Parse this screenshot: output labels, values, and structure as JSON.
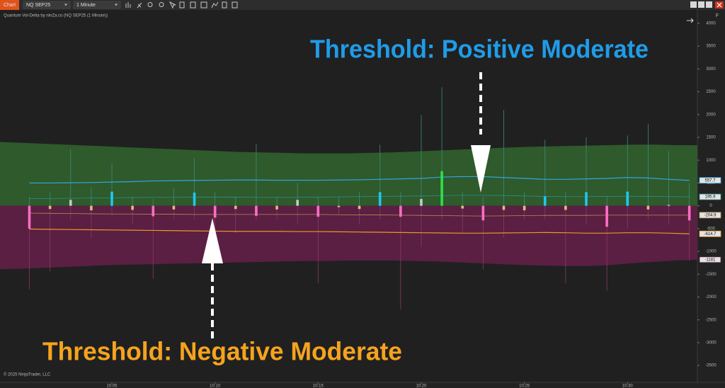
{
  "toolbar": {
    "tab": "Chart",
    "instrument": "NQ SEP25",
    "interval": "1 Minute"
  },
  "chart_data": {
    "type": "bar",
    "title": "Quantum Vol-Delta by ninZa.co (NQ SEP25 (1 Minute))",
    "copyright": "© 2025 NinjaTrader, LLC",
    "panel_letter": "F",
    "annotations": [
      {
        "text": "Threshold: Positive Moderate",
        "color": "#1f9ce8"
      },
      {
        "text": "Threshold: Negative Moderate",
        "color": "#f5a31e"
      }
    ],
    "categories": [
      null,
      null,
      null,
      null,
      "10:05",
      null,
      null,
      null,
      null,
      "10:10",
      null,
      null,
      null,
      null,
      "10:15",
      null,
      null,
      null,
      null,
      "10:20",
      null,
      null,
      null,
      null,
      "10:25",
      null,
      null,
      null,
      null,
      "10:30",
      null,
      null,
      null
    ],
    "ylim": [
      -3870,
      4170
    ],
    "yticks": [
      -3500,
      -3000,
      -2500,
      -2000,
      -1500,
      -1000,
      -500,
      0,
      500,
      1000,
      1500,
      2000,
      2500,
      3000,
      3500,
      4000
    ],
    "delta": {
      "values": [
        -500,
        -70,
        130,
        -100,
        310,
        -90,
        -230,
        -80,
        290,
        -260,
        -70,
        -220,
        -80,
        130,
        -240,
        -30,
        -70,
        300,
        -240,
        150,
        760,
        -60,
        -320,
        -90,
        -100,
        210,
        -90,
        300,
        -460,
        310,
        -80,
        20,
        -320
      ]
    },
    "wick_high": {
      "color": "#3d8c7a",
      "values": [
        200,
        300,
        1240,
        400,
        930,
        200,
        150,
        400,
        1040,
        300,
        200,
        1350,
        200,
        500,
        200,
        200,
        300,
        1340,
        300,
        1990,
        2600,
        300,
        200,
        2100,
        300,
        1450,
        300,
        1500,
        200,
        1540,
        1800,
        1200,
        500
      ]
    },
    "wick_low": {
      "color": "#8c3a66",
      "values": [
        -1830,
        -1440,
        -300,
        -700,
        -200,
        -400,
        -1600,
        -300,
        -300,
        -1100,
        -600,
        -300,
        -300,
        -400,
        -1700,
        -200,
        -400,
        -300,
        -2270,
        -900,
        -300,
        -600,
        -1400,
        -700,
        -300,
        -300,
        -1700,
        -400,
        -1860,
        -500,
        -300,
        -400,
        -1200
      ]
    },
    "bar_colors": {
      "strong_positive": "#2ee04a",
      "moderate_positive": "#1ec8f0",
      "weak_positive": "#c8c8c8",
      "strong_negative": "#ff3fa8",
      "moderate_negative": "#ff6ec4",
      "weak_negative": "#cfc47a"
    },
    "lines": [
      {
        "color": "#2fa8e0",
        "width": 1.2,
        "values": [
          500,
          500,
          505,
          510,
          520,
          530,
          545,
          550,
          555,
          560,
          565,
          565,
          560,
          560,
          560,
          565,
          570,
          580,
          590,
          600,
          630,
          640,
          640,
          620,
          600,
          580,
          580,
          590,
          600,
          620,
          610,
          580,
          557.7
        ]
      },
      {
        "color": "#2a8f8a",
        "width": 0.8,
        "values": [
          160,
          160,
          165,
          170,
          175,
          180,
          185,
          185,
          190,
          190,
          190,
          185,
          185,
          185,
          190,
          195,
          200,
          205,
          210,
          215,
          220,
          230,
          230,
          225,
          215,
          205,
          200,
          200,
          205,
          210,
          205,
          200,
          195.9
        ]
      },
      {
        "color": "#c08850",
        "width": 0.8,
        "values": [
          -160,
          -165,
          -170,
          -175,
          -180,
          -180,
          -185,
          -185,
          -190,
          -190,
          -190,
          -190,
          -190,
          -190,
          -190,
          -195,
          -200,
          -200,
          -205,
          -210,
          -215,
          -220,
          -225,
          -220,
          -215,
          -210,
          -210,
          -210,
          -205,
          -205,
          -205,
          -205,
          -204.9
        ]
      },
      {
        "color": "#f0962a",
        "width": 1.2,
        "values": [
          -510,
          -515,
          -520,
          -525,
          -530,
          -535,
          -540,
          -545,
          -550,
          -555,
          -560,
          -560,
          -560,
          -565,
          -565,
          -570,
          -575,
          -580,
          -585,
          -590,
          -595,
          -600,
          -600,
          -595,
          -590,
          -585,
          -590,
          -600,
          -600,
          -590,
          -590,
          -600,
          -614.7
        ]
      }
    ],
    "bands": {
      "upper": {
        "color": "#2f5a2c",
        "values": [
          1400,
          1380,
          1360,
          1340,
          1320,
          1300,
          1280,
          1260,
          1240,
          1220,
          1200,
          1180,
          1170,
          1160,
          1150,
          1150,
          1150,
          1160,
          1170,
          1190,
          1210,
          1230,
          1250,
          1270,
          1290,
          1300,
          1310,
          1320,
          1330,
          1340,
          1340,
          1330,
          1330
        ]
      },
      "lower": {
        "color": "#5a1f42",
        "values": [
          -1390,
          -1380,
          -1360,
          -1340,
          -1320,
          -1300,
          -1290,
          -1280,
          -1270,
          -1260,
          -1250,
          -1240,
          -1230,
          -1220,
          -1210,
          -1210,
          -1200,
          -1200,
          -1200,
          -1210,
          -1220,
          -1240,
          -1260,
          -1280,
          -1300,
          -1310,
          -1320,
          -1320,
          -1300,
          -1260,
          -1230,
          -1200,
          -1181
        ]
      }
    }
  }
}
